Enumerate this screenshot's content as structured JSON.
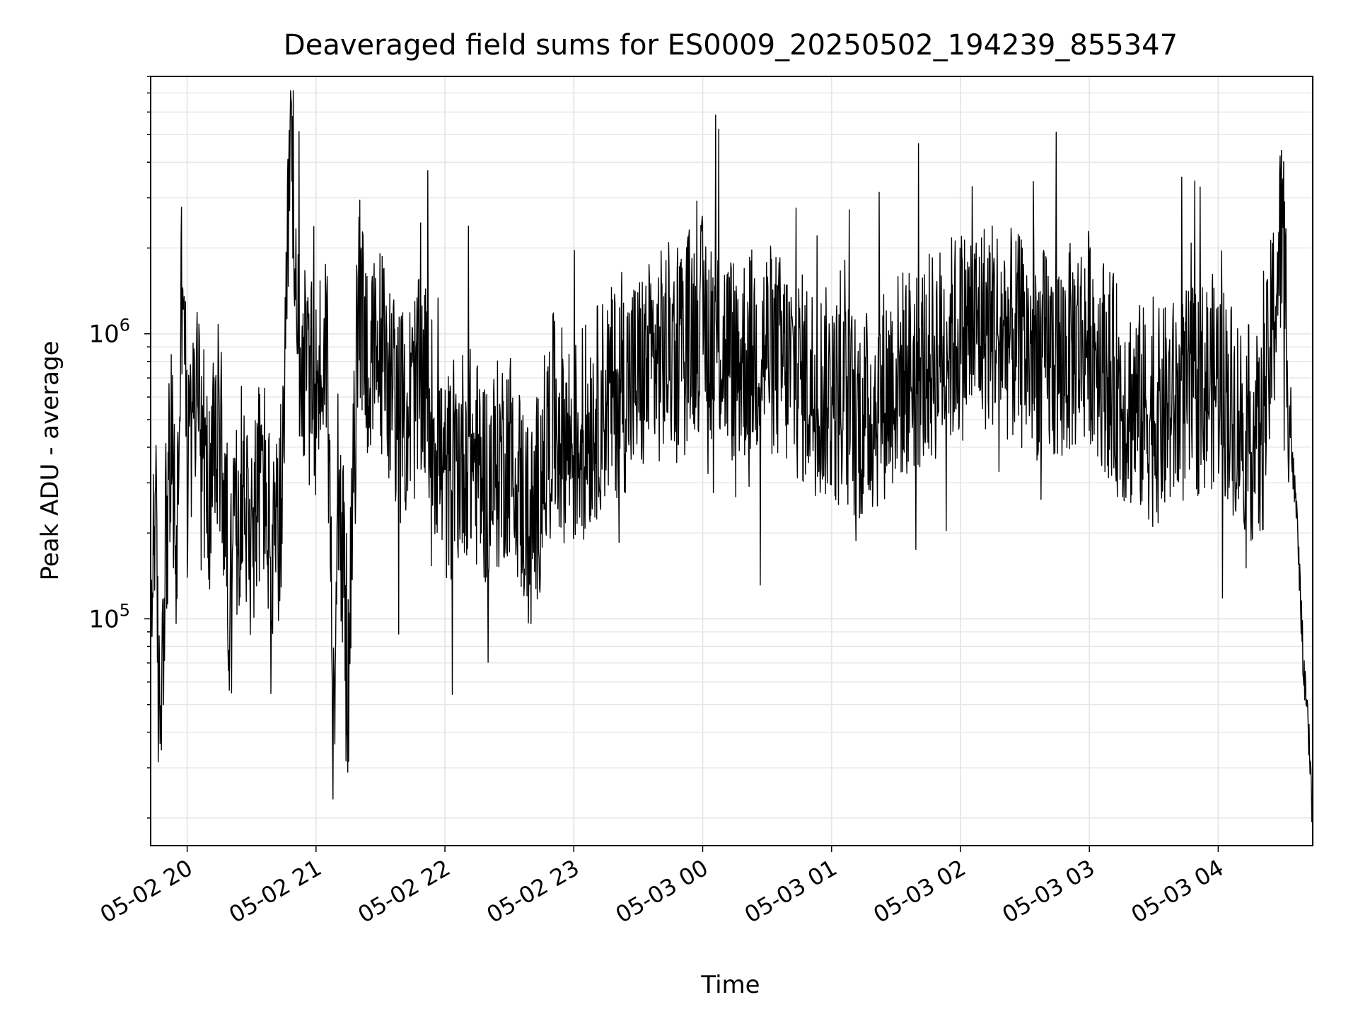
{
  "chart_data": {
    "type": "line",
    "title": "Deaveraged field sums for ES0009_20250502_194239_855347",
    "xlabel": "Time",
    "ylabel": "Peak ADU - average",
    "yscale": "log",
    "ylim": [
      16000,
      8000000
    ],
    "xlim": [
      "2025-05-02 19:43",
      "2025-05-03 04:44"
    ],
    "grid": true,
    "line_color": "#000000",
    "x_ticks": [
      "05-02 20",
      "05-02 21",
      "05-02 22",
      "05-02 23",
      "05-03 00",
      "05-03 01",
      "05-03 02",
      "05-03 03",
      "05-03 04"
    ],
    "x_tick_times": [
      "2025-05-02 20:00",
      "2025-05-02 21:00",
      "2025-05-02 22:00",
      "2025-05-02 23:00",
      "2025-05-03 00:00",
      "2025-05-03 01:00",
      "2025-05-03 02:00",
      "2025-05-03 03:00",
      "2025-05-03 04:00"
    ],
    "y_ticks": [
      {
        "value": 100000,
        "base": "10",
        "exp": "5"
      },
      {
        "value": 1000000,
        "base": "10",
        "exp": "6"
      }
    ],
    "series": [
      {
        "name": "",
        "x": [
          "2025-05-02 19:43",
          "2025-05-02 19:45",
          "2025-05-02 19:47",
          "2025-05-02 19:50",
          "2025-05-02 19:53",
          "2025-05-02 19:55",
          "2025-05-02 19:58",
          "2025-05-02 20:00",
          "2025-05-02 20:05",
          "2025-05-02 20:10",
          "2025-05-02 20:15",
          "2025-05-02 20:20",
          "2025-05-02 20:25",
          "2025-05-02 20:30",
          "2025-05-02 20:35",
          "2025-05-02 20:40",
          "2025-05-02 20:45",
          "2025-05-02 20:48",
          "2025-05-02 20:50",
          "2025-05-02 20:55",
          "2025-05-02 21:00",
          "2025-05-02 21:05",
          "2025-05-02 21:08",
          "2025-05-02 21:10",
          "2025-05-02 21:15",
          "2025-05-02 21:20",
          "2025-05-02 21:25",
          "2025-05-02 21:30",
          "2025-05-02 21:40",
          "2025-05-02 21:50",
          "2025-05-02 22:00",
          "2025-05-02 22:10",
          "2025-05-02 22:20",
          "2025-05-02 22:30",
          "2025-05-02 22:40",
          "2025-05-02 22:50",
          "2025-05-02 23:00",
          "2025-05-02 23:15",
          "2025-05-02 23:30",
          "2025-05-02 23:45",
          "2025-05-03 00:00",
          "2025-05-03 00:15",
          "2025-05-03 00:30",
          "2025-05-03 00:45",
          "2025-05-03 01:00",
          "2025-05-03 01:15",
          "2025-05-03 01:30",
          "2025-05-03 01:45",
          "2025-05-03 02:00",
          "2025-05-03 02:15",
          "2025-05-03 02:30",
          "2025-05-03 02:45",
          "2025-05-03 03:00",
          "2025-05-03 03:15",
          "2025-05-03 03:30",
          "2025-05-03 03:45",
          "2025-05-03 04:00",
          "2025-05-03 04:10",
          "2025-05-03 04:20",
          "2025-05-03 04:30",
          "2025-05-03 04:34",
          "2025-05-03 04:37",
          "2025-05-03 04:40",
          "2025-05-03 04:42",
          "2025-05-03 04:44"
        ],
        "y": [
          90000,
          300000,
          40000,
          200000,
          400000,
          150000,
          2500000,
          300000,
          700000,
          250000,
          500000,
          120000,
          300000,
          200000,
          350000,
          150000,
          300000,
          6000000,
          1200000,
          700000,
          600000,
          1000000,
          50000,
          400000,
          60000,
          1500000,
          700000,
          900000,
          500000,
          700000,
          300000,
          400000,
          300000,
          400000,
          200000,
          500000,
          400000,
          600000,
          700000,
          900000,
          1100000,
          800000,
          900000,
          700000,
          600000,
          500000,
          700000,
          800000,
          1000000,
          1100000,
          900000,
          800000,
          1000000,
          600000,
          500000,
          600000,
          700000,
          500000,
          400000,
          2500000,
          400000,
          200000,
          60000,
          40000,
          20000
        ]
      }
    ]
  }
}
